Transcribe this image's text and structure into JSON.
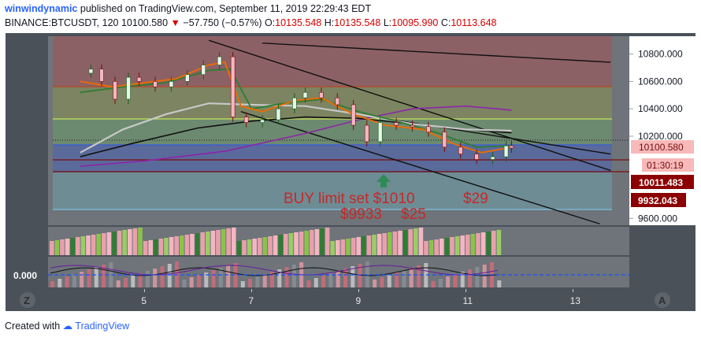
{
  "header": {
    "author": "winwindynamic",
    "published_text": "published on TradingView.com, September 11, 2019 22:29:43 EDT",
    "symbol_text": "BINANCE:BTCUSDT, 120",
    "last_price": "10100.580",
    "change_text": "−57.750 (−0.57%)",
    "o_label": "O:",
    "o_value": "10135.548",
    "h_label": "H:",
    "h_value": "10135.548",
    "l_label": "L:",
    "l_value": "10095.990",
    "c_label": "C:",
    "c_value": "10113.648"
  },
  "footer": {
    "created_with": "Created with",
    "brand": "TradingView"
  },
  "colors": {
    "accent": "#2962ff",
    "up": "#26a69a",
    "down": "#ef5350",
    "price_tag": "#f7b9b9",
    "dark_tag": "#8b0000"
  },
  "chart_data": {
    "type": "line",
    "title": "",
    "xlabel": "",
    "ylabel": "",
    "x_ticks": [
      "5",
      "7",
      "9",
      "11",
      "13"
    ],
    "y_ticks": [
      "10800.000",
      "10600.000",
      "10400.000",
      "10200.000",
      "9600.000"
    ],
    "indicator_tick": "0.000",
    "ylim": [
      9550,
      10930
    ],
    "price_tags": [
      {
        "label": "10100.580",
        "value": 10100.58
      },
      {
        "label": "01:30:19"
      },
      {
        "label": "10011.483",
        "value": 10011.483
      },
      {
        "label": "9932.043",
        "value": 9932.043
      }
    ],
    "levels": [
      10540,
      10300,
      10115,
      9935
    ],
    "annotations": [
      {
        "text": "BUY limit set $1010",
        "color": "#c62828"
      },
      {
        "text": "$29",
        "color": "#c62828"
      },
      {
        "text": "$9933",
        "color": "#c62828"
      },
      {
        "text": "$25",
        "color": "#c62828"
      }
    ],
    "close_series": [
      {
        "x": 3.8,
        "y": 10660
      },
      {
        "x": 4.0,
        "y": 10690
      },
      {
        "x": 4.2,
        "y": 10600
      },
      {
        "x": 4.45,
        "y": 10470
      },
      {
        "x": 4.7,
        "y": 10630
      },
      {
        "x": 4.9,
        "y": 10600
      },
      {
        "x": 5.2,
        "y": 10560
      },
      {
        "x": 5.5,
        "y": 10600
      },
      {
        "x": 5.8,
        "y": 10650
      },
      {
        "x": 6.1,
        "y": 10720
      },
      {
        "x": 6.4,
        "y": 10780
      },
      {
        "x": 6.65,
        "y": 10340
      },
      {
        "x": 6.9,
        "y": 10300
      },
      {
        "x": 7.2,
        "y": 10320
      },
      {
        "x": 7.5,
        "y": 10400
      },
      {
        "x": 7.8,
        "y": 10480
      },
      {
        "x": 8.0,
        "y": 10520
      },
      {
        "x": 8.3,
        "y": 10480
      },
      {
        "x": 8.6,
        "y": 10430
      },
      {
        "x": 8.9,
        "y": 10280
      },
      {
        "x": 9.15,
        "y": 10160
      },
      {
        "x": 9.4,
        "y": 10300
      },
      {
        "x": 9.7,
        "y": 10280
      },
      {
        "x": 10.0,
        "y": 10270
      },
      {
        "x": 10.3,
        "y": 10230
      },
      {
        "x": 10.6,
        "y": 10120
      },
      {
        "x": 10.9,
        "y": 10070
      },
      {
        "x": 11.2,
        "y": 10030
      },
      {
        "x": 11.5,
        "y": 10050
      },
      {
        "x": 11.75,
        "y": 10130
      },
      {
        "x": 11.85,
        "y": 10113.648
      }
    ],
    "ma_fast": [
      {
        "x": 3.8,
        "y": 10600
      },
      {
        "x": 4.4,
        "y": 10560
      },
      {
        "x": 5.0,
        "y": 10590
      },
      {
        "x": 5.6,
        "y": 10620
      },
      {
        "x": 6.2,
        "y": 10720
      },
      {
        "x": 6.5,
        "y": 10740
      },
      {
        "x": 6.8,
        "y": 10420
      },
      {
        "x": 7.2,
        "y": 10380
      },
      {
        "x": 7.8,
        "y": 10460
      },
      {
        "x": 8.3,
        "y": 10480
      },
      {
        "x": 8.9,
        "y": 10360
      },
      {
        "x": 9.5,
        "y": 10280
      },
      {
        "x": 10.2,
        "y": 10250
      },
      {
        "x": 10.8,
        "y": 10140
      },
      {
        "x": 11.3,
        "y": 10080
      },
      {
        "x": 11.85,
        "y": 10120
      }
    ],
    "ma_slow": [
      {
        "x": 3.8,
        "y": 10520
      },
      {
        "x": 4.6,
        "y": 10560
      },
      {
        "x": 5.4,
        "y": 10590
      },
      {
        "x": 6.2,
        "y": 10680
      },
      {
        "x": 6.6,
        "y": 10690
      },
      {
        "x": 7.0,
        "y": 10400
      },
      {
        "x": 7.6,
        "y": 10440
      },
      {
        "x": 8.3,
        "y": 10470
      },
      {
        "x": 9.0,
        "y": 10380
      },
      {
        "x": 9.8,
        "y": 10300
      },
      {
        "x": 10.5,
        "y": 10220
      },
      {
        "x": 11.2,
        "y": 10120
      },
      {
        "x": 11.85,
        "y": 10130
      }
    ],
    "ma_long": [
      {
        "x": 3.8,
        "y": 10080
      },
      {
        "x": 4.6,
        "y": 10250
      },
      {
        "x": 5.4,
        "y": 10360
      },
      {
        "x": 6.2,
        "y": 10440
      },
      {
        "x": 7.0,
        "y": 10430
      },
      {
        "x": 8.0,
        "y": 10420
      },
      {
        "x": 9.0,
        "y": 10360
      },
      {
        "x": 10.0,
        "y": 10290
      },
      {
        "x": 11.0,
        "y": 10250
      },
      {
        "x": 11.85,
        "y": 10240
      }
    ],
    "ma_trend": [
      {
        "x": 3.8,
        "y": 10050
      },
      {
        "x": 4.8,
        "y": 10150
      },
      {
        "x": 6.0,
        "y": 10260
      },
      {
        "x": 7.0,
        "y": 10310
      },
      {
        "x": 8.0,
        "y": 10340
      },
      {
        "x": 9.0,
        "y": 10330
      },
      {
        "x": 10.0,
        "y": 10290
      },
      {
        "x": 11.0,
        "y": 10250
      },
      {
        "x": 11.85,
        "y": 10225
      }
    ],
    "ma_purple": [
      {
        "x": 3.8,
        "y": 9980
      },
      {
        "x": 5.0,
        "y": 10020
      },
      {
        "x": 6.5,
        "y": 10090
      },
      {
        "x": 8.0,
        "y": 10220
      },
      {
        "x": 9.0,
        "y": 10320
      },
      {
        "x": 10.0,
        "y": 10400
      },
      {
        "x": 11.0,
        "y": 10420
      },
      {
        "x": 11.85,
        "y": 10390
      }
    ],
    "trendlines": [
      {
        "x1": 6.2,
        "y1": 10900,
        "x2": 13.7,
        "y2": 9950
      },
      {
        "x1": 6.8,
        "y1": 10380,
        "x2": 13.5,
        "y2": 9560
      },
      {
        "x1": 8.5,
        "y1": 10390,
        "x2": 13.7,
        "y2": 10070
      },
      {
        "x1": 7.2,
        "y1": 10880,
        "x2": 13.7,
        "y2": 10740
      }
    ]
  }
}
